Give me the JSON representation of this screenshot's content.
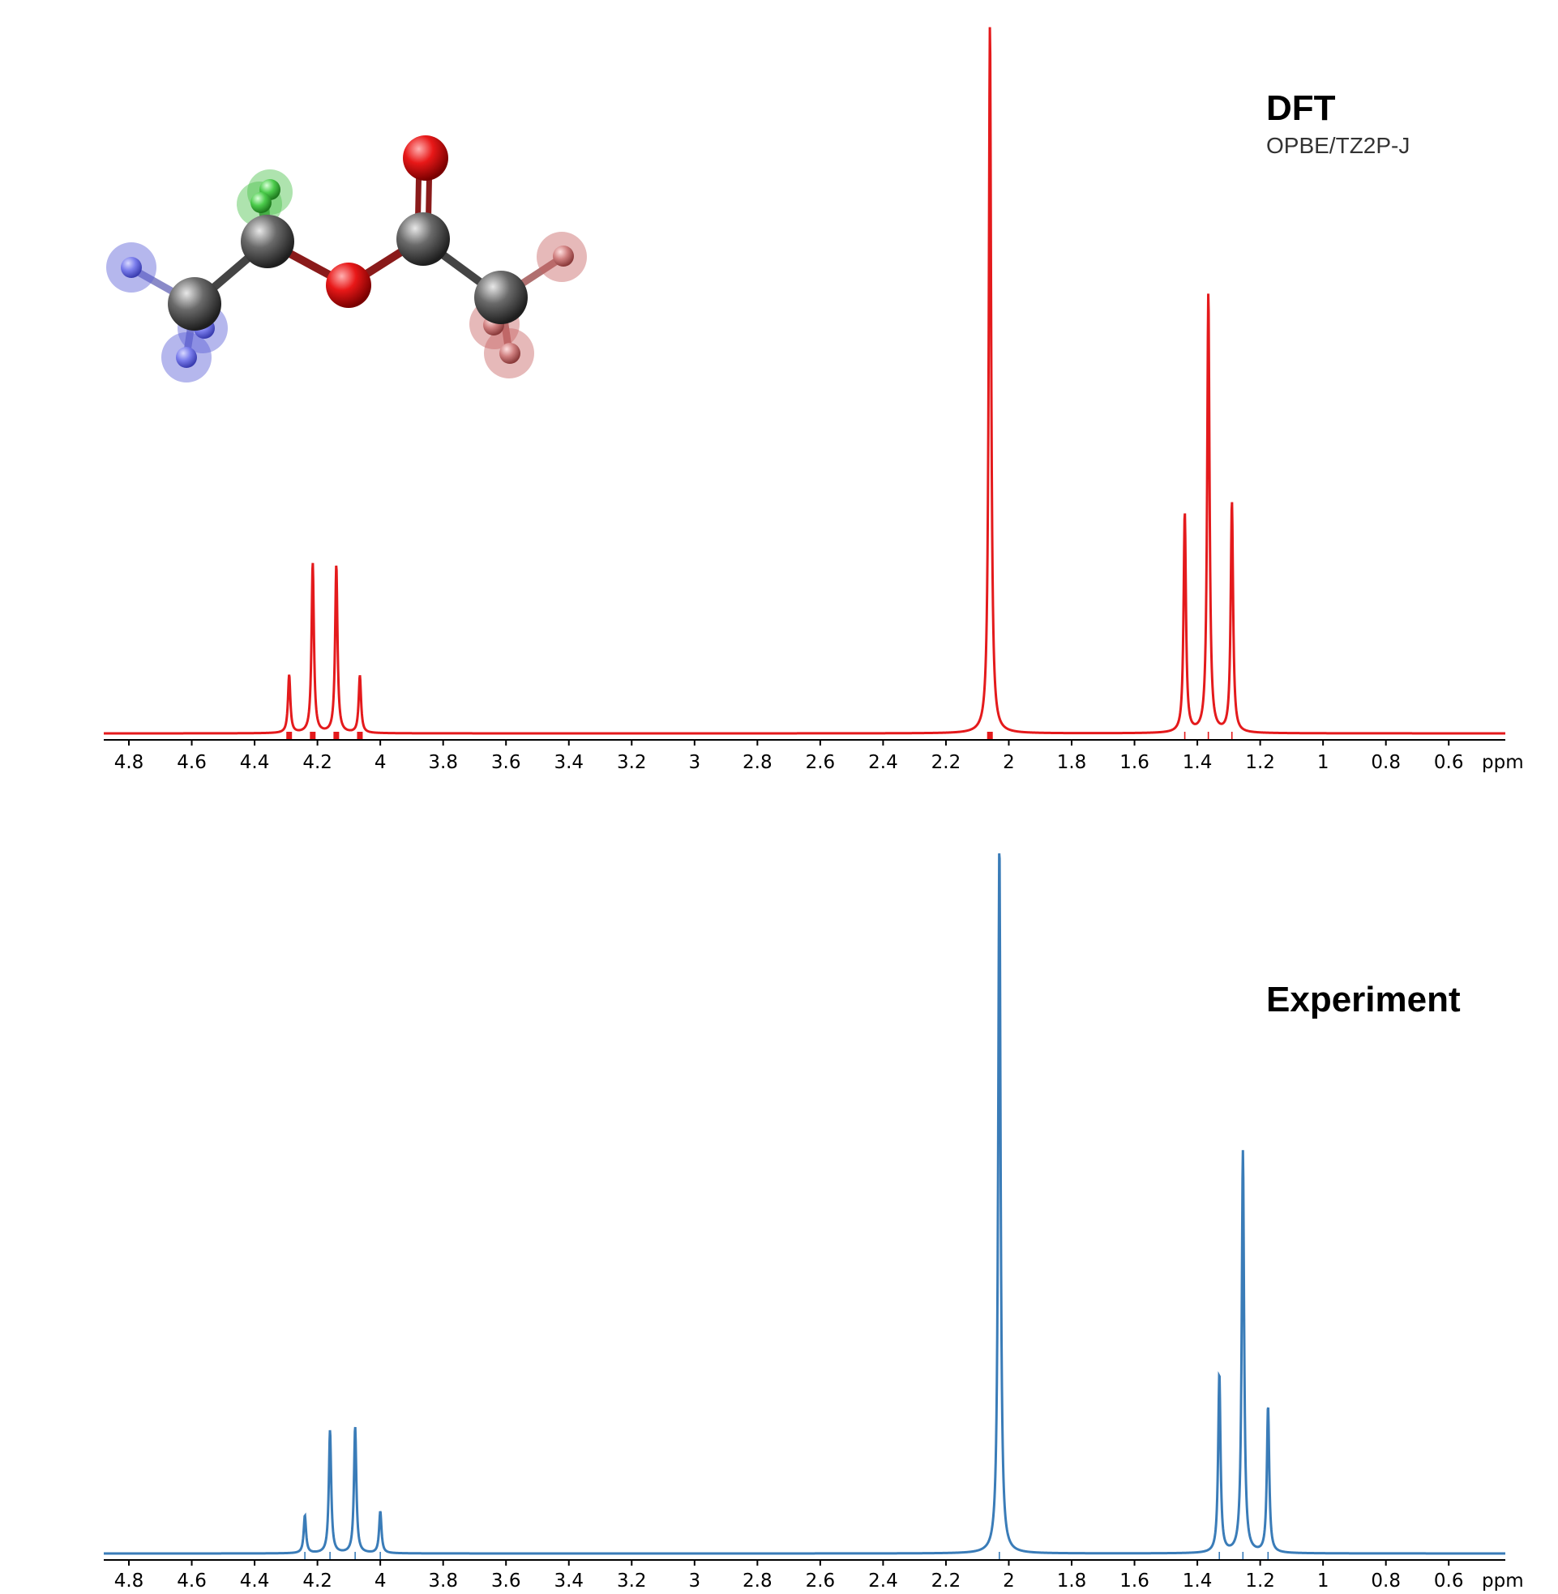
{
  "chart_data": [
    {
      "type": "line",
      "title": "DFT",
      "subtitle": "OPBE/TZ2P-J",
      "xlabel": "ppm",
      "xlim": [
        4.88,
        0.42
      ],
      "x_reversed": true,
      "grid": false,
      "color": "#e41a1c",
      "line_width_ppm": 0.0045,
      "xticks": [
        "4.8",
        "4.6",
        "4.4",
        "4.2",
        "4",
        "3.8",
        "3.6",
        "3.4",
        "3.2",
        "3",
        "2.8",
        "2.6",
        "2.4",
        "2.2",
        "2",
        "1.8",
        "1.6",
        "1.4",
        "1.2",
        "1",
        "0.8",
        "0.6"
      ],
      "peaks": [
        {
          "ppm": 4.29,
          "height": 0.082
        },
        {
          "ppm": 4.215,
          "height": 0.24
        },
        {
          "ppm": 4.14,
          "height": 0.237
        },
        {
          "ppm": 4.065,
          "height": 0.081
        },
        {
          "ppm": 2.06,
          "height": 1.0
        },
        {
          "ppm": 1.44,
          "height": 0.31
        },
        {
          "ppm": 1.365,
          "height": 0.62
        },
        {
          "ppm": 1.29,
          "height": 0.325
        }
      ],
      "stick_markers": [
        {
          "ppm": 4.29,
          "style": "thick"
        },
        {
          "ppm": 4.215,
          "style": "thick"
        },
        {
          "ppm": 4.14,
          "style": "thick"
        },
        {
          "ppm": 4.065,
          "style": "thick"
        },
        {
          "ppm": 2.06,
          "style": "thick"
        },
        {
          "ppm": 1.44,
          "style": "thin"
        },
        {
          "ppm": 1.365,
          "style": "thin"
        },
        {
          "ppm": 1.29,
          "style": "thin"
        }
      ]
    },
    {
      "type": "line",
      "title": "Experiment",
      "subtitle": "",
      "xlabel": "ppm",
      "xlim": [
        4.88,
        0.42
      ],
      "x_reversed": true,
      "grid": false,
      "color": "#3a7cb8",
      "line_width_ppm": 0.0045,
      "xticks": [
        "4.8",
        "4.6",
        "4.4",
        "4.2",
        "4",
        "3.8",
        "3.6",
        "3.4",
        "3.2",
        "3",
        "2.8",
        "2.6",
        "2.4",
        "2.2",
        "2",
        "1.8",
        "1.6",
        "1.4",
        "1.2",
        "1",
        "0.8",
        "0.6"
      ],
      "peaks": [
        {
          "ppm": 4.24,
          "height": 0.053
        },
        {
          "ppm": 4.16,
          "height": 0.173
        },
        {
          "ppm": 4.08,
          "height": 0.178
        },
        {
          "ppm": 4.0,
          "height": 0.059
        },
        {
          "ppm": 2.03,
          "height": 1.0
        },
        {
          "ppm": 1.33,
          "height": 0.252
        },
        {
          "ppm": 1.255,
          "height": 0.566
        },
        {
          "ppm": 1.175,
          "height": 0.206
        }
      ],
      "stick_markers": [
        {
          "ppm": 4.24,
          "style": "thin"
        },
        {
          "ppm": 4.16,
          "style": "thin"
        },
        {
          "ppm": 4.08,
          "style": "thin"
        },
        {
          "ppm": 4.0,
          "style": "thin"
        },
        {
          "ppm": 2.03,
          "style": "thin"
        },
        {
          "ppm": 1.33,
          "style": "thin"
        },
        {
          "ppm": 1.255,
          "style": "thin"
        },
        {
          "ppm": 1.175,
          "style": "thin"
        }
      ]
    }
  ],
  "molecule": {
    "atoms": [
      {
        "element": "C",
        "group": "ethyl-CH3"
      },
      {
        "element": "C",
        "group": "ethyl-CH2"
      },
      {
        "element": "O",
        "group": "ester-O"
      },
      {
        "element": "C",
        "group": "carbonyl-C"
      },
      {
        "element": "O",
        "group": "carbonyl-O"
      },
      {
        "element": "C",
        "group": "acetyl-CH3"
      },
      {
        "element": "H",
        "group": "ethyl-CH3",
        "highlight": "#5b5fd6"
      },
      {
        "element": "H",
        "group": "ethyl-CH3",
        "highlight": "#5b5fd6"
      },
      {
        "element": "H",
        "group": "ethyl-CH3",
        "highlight": "#5b5fd6"
      },
      {
        "element": "H",
        "group": "ethyl-CH2",
        "highlight": "#4cc04c"
      },
      {
        "element": "H",
        "group": "ethyl-CH2",
        "highlight": "#4cc04c"
      },
      {
        "element": "H",
        "group": "acetyl-CH3",
        "highlight": "#c86464"
      },
      {
        "element": "H",
        "group": "acetyl-CH3",
        "highlight": "#c86464"
      },
      {
        "element": "H",
        "group": "acetyl-CH3",
        "highlight": "#c86464"
      }
    ],
    "colors": {
      "C": "#555555",
      "O": "#e01010",
      "H_ethyl_CH3": "#6f72e6",
      "H_ethyl_CH2": "#45c445",
      "H_acetyl_CH3": "#d07a7a"
    }
  }
}
